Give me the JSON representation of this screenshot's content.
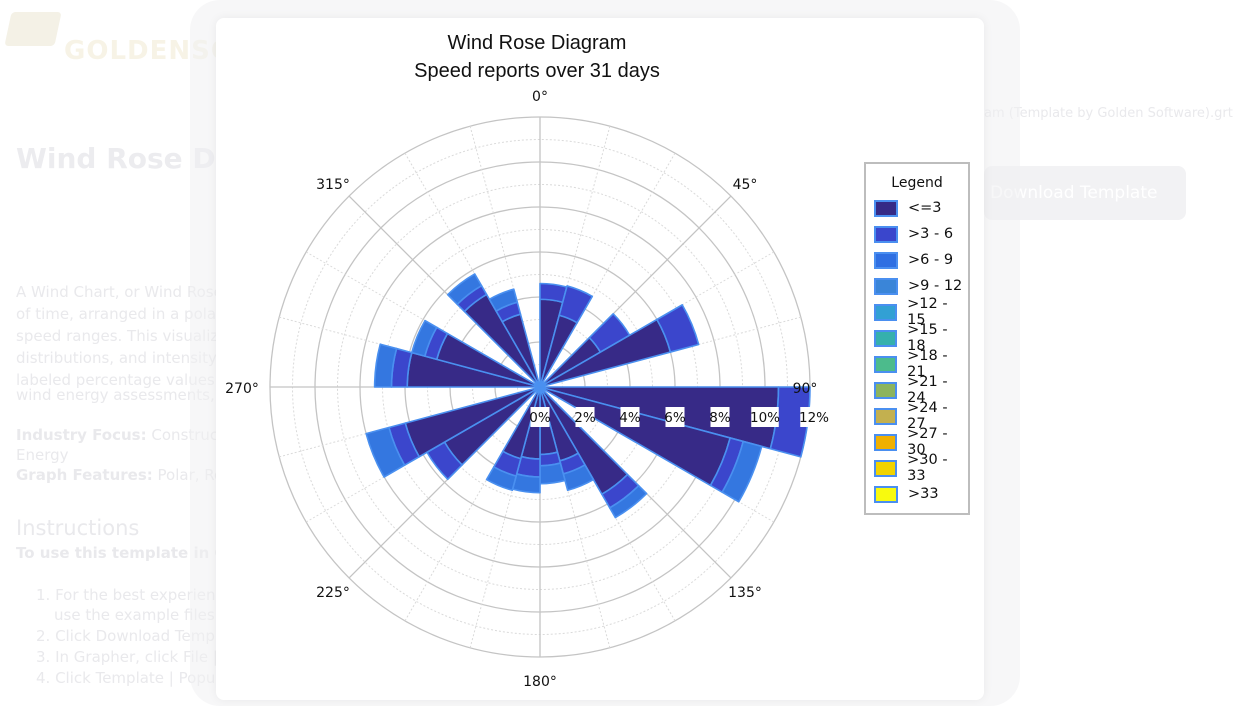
{
  "background_page": {
    "logo_text": "GOLDENSO",
    "title": "Wind Rose Diag",
    "paragraph_lines": [
      "A Wind Chart, or Wind Rose",
      "of time, arranged in a polar c",
      "speed ranges. This visualiza",
      "distributions, and intensity v",
      "labeled percentage values, a",
      "wind energy assessments, a"
    ],
    "industry_label": "Industry Focus:",
    "industry_value": "Constructio",
    "industry_value_2": "Energy",
    "features_label": "Graph Features:",
    "features_value": "Polar, Rose",
    "instructions_title": "Instructions",
    "instructions_lead": "To use this template in Gra",
    "steps": [
      "1. For the best experienc",
      "use the example files i",
      "2. Click Download Templ",
      "3. In Grapher, click File | (",
      "4. Click Template | Popu"
    ],
    "file_caption": "am (Template by Golden Software).grt",
    "download_label": "Download Template"
  },
  "chart_data": {
    "type": "wind-rose (polar stacked bar)",
    "title": "Wind Rose Diagram",
    "subtitle": "Speed reports over 31 days",
    "sector_width_deg": 15,
    "directions_deg": [
      0,
      15,
      30,
      45,
      60,
      75,
      90,
      105,
      120,
      135,
      150,
      165,
      180,
      195,
      210,
      225,
      240,
      255,
      270,
      285,
      300,
      315,
      330,
      345
    ],
    "series": [
      {
        "name": "<=3",
        "color": "#372a87",
        "values": [
          3.9,
          3.3,
          0,
          3.1,
          6.0,
          0,
          10.6,
          8.75,
          0,
          5.5,
          3.4,
          3.0,
          3.2,
          3.3,
          0,
          4.9,
          6.2,
          0,
          5.9,
          4.75,
          0,
          4.75,
          3.35,
          0
        ]
      },
      {
        "name": ">3 - 6",
        "color": "#3b46cc",
        "values": [
          0.7,
          1.35,
          0,
          1.5,
          1.3,
          0,
          1.4,
          0.6,
          0,
          0.7,
          0.6,
          0.5,
          0.8,
          0.8,
          0,
          0.9,
          0.75,
          0,
          0.7,
          0.55,
          0,
          0.45,
          0.55,
          0
        ]
      },
      {
        "name": ">6 - 9",
        "color": "#3477e0",
        "values": [
          0,
          0,
          0,
          0,
          0,
          0,
          0,
          0.85,
          0,
          0.5,
          0.75,
          0.8,
          0.7,
          0.65,
          0,
          0,
          1.05,
          0,
          0.75,
          0.6,
          0,
          0.6,
          0.6,
          0
        ]
      }
    ],
    "outline_color": "#4a90f0",
    "radial_axis": {
      "min": 0,
      "max": 12,
      "major_step": 2,
      "minor_step": 1,
      "unit": "%",
      "tick_labels": [
        "0%",
        "2%",
        "4%",
        "6%",
        "8%",
        "10%",
        "12%"
      ]
    },
    "angular_labels": [
      "0°",
      "45°",
      "90°",
      "135°",
      "180°",
      "225°",
      "270°",
      "315°"
    ],
    "grid": true,
    "legend": {
      "title": "Legend",
      "placement": "right",
      "entries": [
        {
          "label": "<=3",
          "color": "#352a86"
        },
        {
          "label": ">3 - 6",
          "color": "#3a46cc"
        },
        {
          "label": ">6 - 9",
          "color": "#2f6fe2"
        },
        {
          "label": ">9 - 12",
          "color": "#3a85d8"
        },
        {
          "label": ">12 - 15",
          "color": "#32a0d4"
        },
        {
          "label": ">15 - 18",
          "color": "#35b0ad"
        },
        {
          "label": ">18 - 21",
          "color": "#4cbb8c"
        },
        {
          "label": ">21 - 24",
          "color": "#8cb45e"
        },
        {
          "label": ">24 - 27",
          "color": "#c3b04f"
        },
        {
          "label": ">27 - 30",
          "color": "#f0b000"
        },
        {
          "label": ">30 - 33",
          "color": "#f1d300"
        },
        {
          "label": ">33",
          "color": "#f8fa0e"
        }
      ]
    }
  }
}
